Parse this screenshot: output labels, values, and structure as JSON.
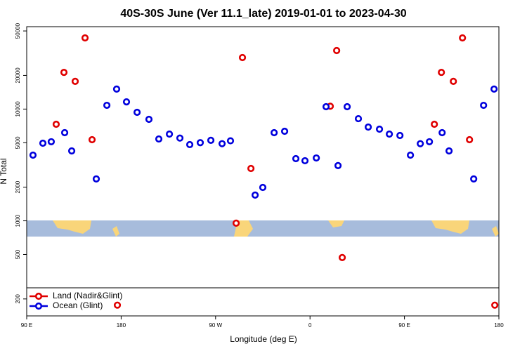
{
  "chart_data": {
    "type": "scatter",
    "title": "40S-30S June (Ver 11.1_late)   2019-01-01 to 2023-04-30",
    "x_label": "Longitude (deg E)",
    "y_label": "N Total",
    "log_y": true,
    "legend": "bottom-left",
    "xlim": [
      90,
      540
    ],
    "ylim": [
      141,
      54600
    ],
    "xticks": [
      {
        "value": 90,
        "label": "90 E"
      },
      {
        "value": 180,
        "label": "180"
      },
      {
        "value": 270,
        "label": "90 W"
      },
      {
        "value": 360,
        "label": "0"
      },
      {
        "value": 450,
        "label": "90 E"
      },
      {
        "value": 540,
        "label": "180"
      }
    ],
    "yticks": [
      200,
      500,
      1000,
      2000,
      5000,
      10000,
      20000,
      50000
    ],
    "series": [
      {
        "name": "Land (Nadir&Glint)",
        "color": "#e00000",
        "x": [
          118.1,
          125.5,
          136.2,
          145.6,
          152.3,
          176.4,
          289.6,
          295.6,
          303.7,
          379.3,
          385.4,
          390.7,
          478.5,
          485.2,
          496.6,
          505.3,
          512,
          536.1
        ],
        "values": [
          7310,
          21300,
          17700,
          43300,
          5320,
          176,
          953,
          28900,
          2940,
          10600,
          33400,
          469,
          7310,
          21300,
          17700,
          43300,
          5320,
          176
        ]
      },
      {
        "name": "Ocean (Glint)",
        "color": "#0000dd",
        "x": [
          96,
          105.4,
          113.4,
          126.2,
          132.9,
          156.3,
          166.4,
          175.7,
          185.1,
          195.2,
          206.5,
          215.9,
          226,
          236,
          245.4,
          255.4,
          265.5,
          276.2,
          284.2,
          307.7,
          315,
          325.8,
          335.8,
          346.5,
          355.2,
          366,
          375.3,
          386.7,
          395.4,
          406.1,
          415.5,
          426.2,
          435.6,
          445.7,
          455.7,
          465.1,
          473.8,
          485.9,
          492.5,
          516,
          525.4,
          535.4
        ],
        "values": [
          3870,
          4950,
          5100,
          6150,
          4220,
          2370,
          10800,
          15100,
          11600,
          9350,
          8090,
          5400,
          5970,
          5500,
          4810,
          5000,
          5250,
          4900,
          5200,
          1700,
          1990,
          6150,
          6330,
          3600,
          3450,
          3650,
          10500,
          3120,
          10500,
          8200,
          6900,
          6610,
          5970,
          5800,
          3870,
          4900,
          5100,
          6150,
          4220,
          2370,
          10800,
          15100
        ]
      }
    ]
  }
}
